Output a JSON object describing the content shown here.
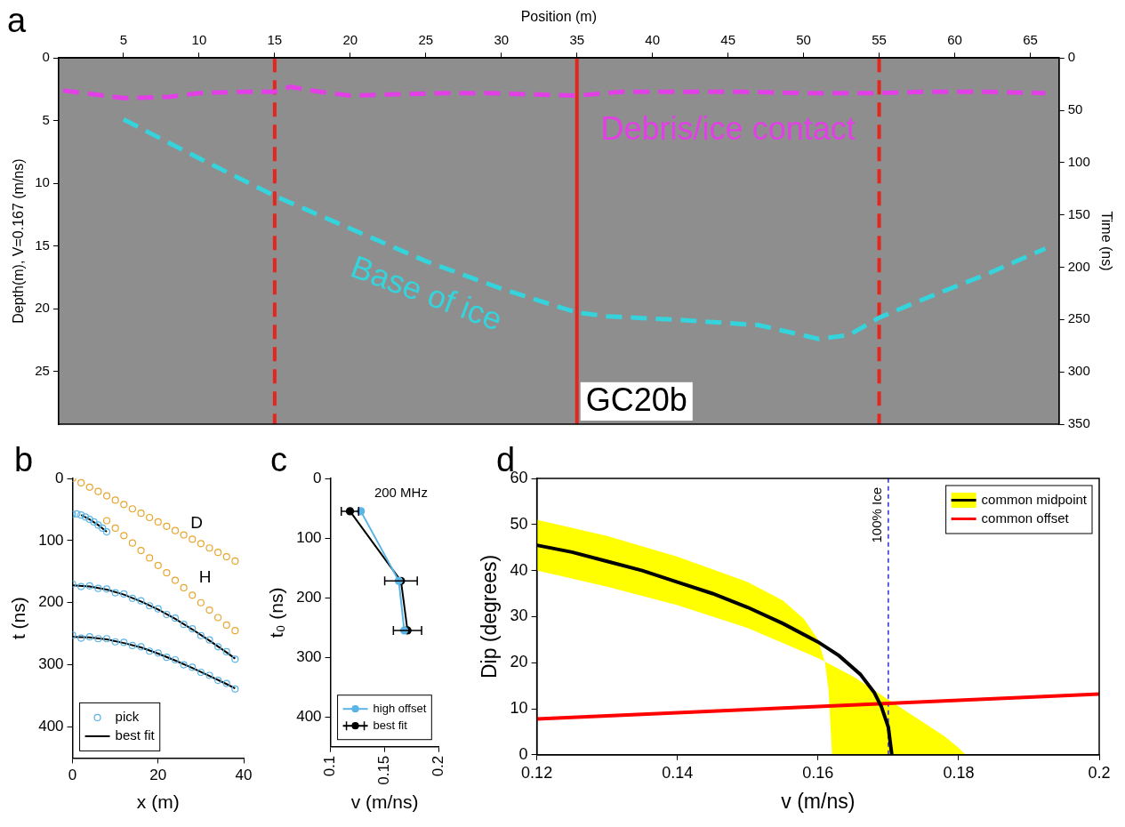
{
  "chart_data": [
    {
      "panel": "a",
      "type": "line",
      "x_label": "Position (m)",
      "y_label": "Depth(m), V=0.167 (m/ns)",
      "y2_label": "Time (ns)",
      "xlim": [
        0.7,
        66.9
      ],
      "xticks": [
        5,
        10,
        15,
        20,
        25,
        30,
        35,
        40,
        45,
        50,
        55,
        60,
        65
      ],
      "ylim": [
        0,
        29.2
      ],
      "yticks": [
        0,
        5,
        10,
        15,
        20,
        25
      ],
      "y2lim": [
        0,
        350
      ],
      "y2ticks": [
        0,
        50,
        100,
        150,
        200,
        250,
        300,
        350
      ],
      "grid": false,
      "series": [
        {
          "color": "#e33fe6",
          "line_style": "dashed",
          "x": [
            1,
            3,
            5,
            8,
            10,
            13,
            15,
            16,
            18,
            20,
            23,
            26,
            29,
            32,
            35,
            38,
            42,
            46,
            50,
            55,
            58,
            62,
            66
          ],
          "values": [
            2.6,
            2.9,
            3.2,
            3.1,
            2.8,
            2.7,
            2.7,
            2.3,
            2.7,
            3.0,
            2.9,
            2.8,
            2.8,
            2.9,
            3.0,
            2.7,
            2.7,
            2.7,
            2.8,
            2.8,
            2.7,
            2.7,
            2.8
          ]
        },
        {
          "color": "#35d3dc",
          "line_style": "dashed",
          "x": [
            5,
            10,
            15,
            20,
            25,
            30,
            35,
            37,
            42,
            47,
            51,
            53,
            55,
            58,
            62,
            66
          ],
          "values": [
            4.9,
            8.0,
            11.0,
            13.6,
            16.2,
            18.4,
            20.3,
            20.6,
            20.9,
            21.3,
            22.4,
            22.1,
            20.7,
            19.2,
            17.3,
            15.2
          ]
        }
      ],
      "vlines": [
        {
          "x": 15,
          "color": "#e3261e",
          "line_style": "dashed"
        },
        {
          "x": 35,
          "color": "#e3261e",
          "line_style": "solid",
          "label": "GC20b"
        },
        {
          "x": 55,
          "color": "#e3261e",
          "line_style": "dashed"
        }
      ],
      "annotations": [
        {
          "text": "Debris/ice contact",
          "x": 45,
          "y": 5.8,
          "color": "#e33fe6"
        },
        {
          "text": "Base of ice",
          "x": 25,
          "y": 18.9,
          "color": "#35d3dc"
        }
      ]
    },
    {
      "panel": "b",
      "type": "line",
      "x_label": "x (m)",
      "y_label": "t (ns)",
      "xlim": [
        0,
        40
      ],
      "xticks": [
        0,
        20,
        40
      ],
      "ylim": [
        0,
        450
      ],
      "yticks": [
        0,
        100,
        200,
        300,
        400
      ],
      "grid": false,
      "legend": "lower left",
      "series": [
        {
          "name": "pick",
          "color": "#5ab4e5",
          "marker": "open circle",
          "line_style": "none",
          "x": [
            0,
            1,
            2,
            3,
            4,
            5,
            6,
            7,
            8,
            null,
            0,
            2,
            4,
            6,
            8,
            10,
            12,
            14,
            16,
            18,
            20,
            22,
            24,
            26,
            28,
            30,
            32,
            34,
            36,
            38,
            null,
            0,
            2,
            4,
            6,
            8,
            10,
            12,
            14,
            16,
            18,
            20,
            22,
            24,
            26,
            28,
            30,
            32,
            34,
            36,
            38
          ],
          "values": [
            58,
            57,
            59,
            62,
            66,
            70,
            75,
            80,
            86,
            null,
            170,
            174,
            173,
            177,
            178,
            184,
            186,
            193,
            197,
            205,
            210,
            219,
            225,
            235,
            242,
            253,
            260,
            271,
            279,
            291,
            null,
            252,
            257,
            255,
            258,
            258,
            263,
            264,
            269,
            271,
            278,
            281,
            288,
            292,
            300,
            304,
            312,
            317,
            325,
            330,
            339
          ]
        },
        {
          "name": "best fit",
          "color": "#000000",
          "line_style": "solid",
          "x": [
            2,
            4,
            6,
            8,
            null,
            0,
            4,
            8,
            12,
            16,
            20,
            24,
            28,
            32,
            36,
            38,
            null,
            0,
            4,
            8,
            12,
            16,
            20,
            24,
            28,
            32,
            36,
            38
          ],
          "values": [
            59,
            66,
            75,
            86,
            null,
            172,
            174,
            179,
            187,
            198,
            211,
            226,
            243,
            261,
            280,
            290,
            null,
            255,
            256,
            259,
            265,
            272,
            282,
            293,
            305,
            318,
            331,
            338
          ]
        },
        {
          "color": "#e8a630",
          "marker": "open circle",
          "line_style": "none",
          "x": [
            0,
            2,
            4,
            6,
            8,
            10,
            12,
            14,
            16,
            18,
            20,
            22,
            24,
            26,
            28,
            30,
            32,
            34,
            36,
            38
          ],
          "values": [
            0,
            7,
            14,
            21,
            28,
            35,
            42,
            49,
            56,
            63,
            70,
            77,
            84,
            91,
            98,
            105,
            112,
            119,
            126,
            133
          ]
        },
        {
          "color": "#e8a630",
          "marker": "open circle",
          "line_style": "none",
          "x": [
            8,
            10,
            12,
            14,
            16,
            18,
            20,
            22,
            24,
            26,
            28,
            30,
            32,
            34,
            36,
            38
          ],
          "values": [
            68,
            80,
            92,
            104,
            116,
            128,
            140,
            152,
            164,
            176,
            188,
            200,
            212,
            224,
            236,
            245
          ]
        }
      ],
      "annotations": [
        {
          "text": "D",
          "x": 29,
          "y": 72,
          "color": "#000000"
        },
        {
          "text": "H",
          "x": 31,
          "y": 160,
          "color": "#000000"
        }
      ]
    },
    {
      "panel": "c",
      "type": "line",
      "x_label": "v (m/ns)",
      "y_label": "t₀ (ns)",
      "xlim": [
        0.1,
        0.2
      ],
      "xticks": [
        0.1,
        0.15,
        0.2
      ],
      "ylim": [
        0,
        450
      ],
      "yticks": [
        0,
        100,
        200,
        300,
        400
      ],
      "grid": false,
      "legend": "lower left",
      "series": [
        {
          "name": "high offset",
          "color": "#5ab4e5",
          "marker": "circle",
          "line_style": "solid",
          "x": [
            0.128,
            0.163,
            0.168
          ],
          "values": [
            55,
            172,
            255
          ]
        },
        {
          "name": "best fit",
          "color": "#000000",
          "marker": "circle",
          "line_style": "solid",
          "x": [
            0.118,
            0.165,
            0.171
          ],
          "values": [
            55,
            172,
            255
          ],
          "xerr": [
            0.008,
            0.015,
            0.013
          ]
        }
      ],
      "annotations": [
        {
          "text": "200 MHz",
          "x": 0.165,
          "y": 25,
          "color": "#000000"
        }
      ]
    },
    {
      "panel": "d",
      "type": "line",
      "x_label": "v (m/ns)",
      "y_label": "Dip (degrees)",
      "xlim": [
        0.12,
        0.2
      ],
      "xticks": [
        0.12,
        0.14,
        0.16,
        0.18,
        0.2
      ],
      "ylim": [
        0,
        60
      ],
      "yticks": [
        0,
        10,
        20,
        30,
        40,
        50,
        60
      ],
      "grid": false,
      "legend": "upper right",
      "series": [
        {
          "name": "common midpoint",
          "color": "#000000",
          "line_style": "solid",
          "x": [
            0.12,
            0.125,
            0.13,
            0.135,
            0.14,
            0.145,
            0.15,
            0.155,
            0.16,
            0.163,
            0.166,
            0.168,
            0.169,
            0.17,
            0.1705
          ],
          "values": [
            45.5,
            44,
            42,
            40,
            37.5,
            35,
            32,
            28.5,
            24.5,
            21.5,
            17.5,
            13.5,
            10.5,
            6,
            0
          ],
          "band": {
            "color": "#ffff00",
            "upper": {
              "x": [
                0.12,
                0.13,
                0.14,
                0.15,
                0.155,
                0.158,
                0.16,
                0.161,
                0.1615,
                0.162
              ],
              "values": [
                51,
                47.5,
                43,
                37.5,
                33.5,
                29.5,
                25,
                20,
                14,
                0
              ]
            },
            "lower": {
              "x": [
                0.12,
                0.13,
                0.14,
                0.15,
                0.16,
                0.165,
                0.17,
                0.175,
                0.178,
                0.18,
                0.181
              ],
              "values": [
                40,
                36.5,
                32.5,
                27.5,
                21,
                17,
                12,
                7,
                4,
                1.5,
                0
              ]
            }
          }
        },
        {
          "name": "common offset",
          "color": "#ff0000",
          "line_style": "solid",
          "x": [
            0.12,
            0.2
          ],
          "values": [
            7.8,
            13.2
          ]
        }
      ],
      "vlines": [
        {
          "x": 0.17,
          "color": "#2b2bdb",
          "line_style": "dashed",
          "label": "100% Ice"
        }
      ]
    }
  ]
}
